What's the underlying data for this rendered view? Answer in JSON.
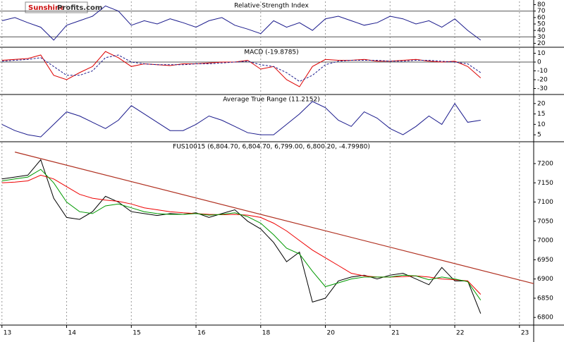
{
  "logo": {
    "part1": "Sunshine",
    "part2": "Profits.com"
  },
  "chart_data": [
    {
      "type": "line",
      "title": "Relative Strength Index",
      "x": [
        0,
        0.2,
        0.4,
        0.6,
        0.8,
        1,
        1.2,
        1.4,
        1.6,
        1.8,
        2,
        2.2,
        2.4,
        2.6,
        2.8,
        3,
        3.2,
        3.4,
        3.6,
        3.8,
        4,
        4.2,
        4.4,
        4.6,
        4.8,
        5,
        5.2,
        5.4,
        5.6,
        5.8,
        6,
        6.2,
        6.4,
        6.6,
        6.8,
        7,
        7.2,
        7.4
      ],
      "series": [
        {
          "color": "#1a1a8c",
          "values": [
            55,
            60,
            52,
            45,
            25,
            48,
            55,
            62,
            78,
            70,
            48,
            55,
            50,
            58,
            52,
            45,
            55,
            60,
            48,
            42,
            35,
            55,
            45,
            52,
            40,
            58,
            62,
            55,
            48,
            52,
            62,
            58,
            50,
            55,
            45,
            58,
            40,
            25
          ]
        }
      ],
      "xlim": [
        -0.03,
        8.22
      ],
      "xticks": [
        0,
        1,
        2,
        3,
        4,
        5,
        6,
        7,
        8
      ],
      "ylim": [
        15,
        85
      ],
      "yticks": [
        20,
        30,
        40,
        50,
        60,
        70,
        80
      ],
      "hlines": [
        70,
        30
      ]
    },
    {
      "type": "line",
      "title": "MACD (-19.8785)",
      "x": [
        0,
        0.2,
        0.4,
        0.6,
        0.8,
        1,
        1.2,
        1.4,
        1.6,
        1.8,
        2,
        2.2,
        2.4,
        2.6,
        2.8,
        3,
        3.2,
        3.4,
        3.6,
        3.8,
        4,
        4.2,
        4.4,
        4.6,
        4.8,
        5,
        5.2,
        5.4,
        5.6,
        5.8,
        6,
        6.2,
        6.4,
        6.6,
        6.8,
        7,
        7.2,
        7.4
      ],
      "series": [
        {
          "color": "#dd0000",
          "values": [
            2,
            3,
            4,
            8,
            -15,
            -20,
            -12,
            -5,
            12,
            5,
            -5,
            -2,
            -3,
            -4,
            -2,
            -2,
            -1,
            0,
            0,
            2,
            -8,
            -5,
            -20,
            -28,
            -5,
            3,
            2,
            2,
            3,
            1,
            1,
            2,
            3,
            1,
            0,
            1,
            -5,
            -18
          ]
        },
        {
          "color": "#1a1a8c",
          "dash": true,
          "values": [
            1,
            2,
            3,
            5,
            -5,
            -15,
            -15,
            -10,
            5,
            8,
            0,
            -2,
            -3,
            -3,
            -3,
            -2,
            -2,
            -1,
            0,
            1,
            -3,
            -5,
            -12,
            -22,
            -15,
            -3,
            1,
            2,
            2,
            2,
            1,
            1,
            2,
            2,
            1,
            0,
            -2,
            -12
          ]
        }
      ],
      "xlim": [
        -0.03,
        8.22
      ],
      "xticks": [
        0,
        1,
        2,
        3,
        4,
        5,
        6,
        7,
        8
      ],
      "ylim": [
        -36,
        16
      ],
      "yticks": [
        -30,
        -20,
        -10,
        0,
        10
      ],
      "hlines": [
        0
      ]
    },
    {
      "type": "line",
      "title": "Average True Range (11.2152)",
      "x": [
        0,
        0.2,
        0.4,
        0.6,
        0.8,
        1,
        1.2,
        1.4,
        1.6,
        1.8,
        2,
        2.2,
        2.4,
        2.6,
        2.8,
        3,
        3.2,
        3.4,
        3.6,
        3.8,
        4,
        4.2,
        4.4,
        4.6,
        4.8,
        5,
        5.2,
        5.4,
        5.6,
        5.8,
        6,
        6.2,
        6.4,
        6.6,
        6.8,
        7,
        7.2,
        7.4
      ],
      "series": [
        {
          "color": "#1a1a8c",
          "values": [
            10,
            7,
            5,
            4,
            10,
            16,
            14,
            11,
            8,
            12,
            19,
            15,
            11,
            7,
            7,
            10,
            14,
            12,
            9,
            6,
            5,
            5,
            10,
            15,
            21,
            18,
            12,
            9,
            16,
            13,
            8,
            5,
            9,
            14,
            10,
            20,
            11,
            12
          ]
        }
      ],
      "xlim": [
        -0.03,
        8.22
      ],
      "xticks": [
        0,
        1,
        2,
        3,
        4,
        5,
        6,
        7,
        8
      ],
      "ylim": [
        2,
        24
      ],
      "yticks": [
        5,
        10,
        15,
        20
      ]
    },
    {
      "type": "line",
      "title": "FUS10015 (6,804.70, 6,804.70, 6,799.00, 6,800.20, -4.79980)",
      "x": [
        0,
        0.2,
        0.4,
        0.6,
        0.8,
        1,
        1.2,
        1.4,
        1.6,
        1.8,
        2,
        2.2,
        2.4,
        2.6,
        2.8,
        3,
        3.2,
        3.4,
        3.6,
        3.8,
        4,
        4.2,
        4.4,
        4.6,
        4.8,
        5,
        5.2,
        5.4,
        5.6,
        5.8,
        6,
        6.2,
        6.4,
        6.6,
        6.8,
        7,
        7.2,
        7.4
      ],
      "series": [
        {
          "color": "#000000",
          "values": [
            7160,
            7165,
            7170,
            7210,
            7110,
            7060,
            7055,
            7075,
            7115,
            7100,
            7075,
            7070,
            7065,
            7070,
            7068,
            7072,
            7060,
            7070,
            7080,
            7050,
            7030,
            6995,
            6945,
            6970,
            6840,
            6850,
            6895,
            6905,
            6910,
            6900,
            6910,
            6915,
            6900,
            6885,
            6930,
            6895,
            6895,
            6810
          ]
        },
        {
          "color": "#ee0000",
          "values": [
            7150,
            7152,
            7155,
            7170,
            7160,
            7140,
            7120,
            7110,
            7105,
            7102,
            7095,
            7085,
            7080,
            7075,
            7072,
            7070,
            7068,
            7067,
            7068,
            7066,
            7060,
            7045,
            7025,
            7000,
            6975,
            6955,
            6935,
            6915,
            6908,
            6905,
            6905,
            6906,
            6908,
            6905,
            6900,
            6898,
            6895,
            6860
          ]
        },
        {
          "color": "#009900",
          "values": [
            7155,
            7160,
            7165,
            7185,
            7150,
            7100,
            7075,
            7070,
            7090,
            7095,
            7085,
            7075,
            7070,
            7068,
            7068,
            7070,
            7066,
            7068,
            7072,
            7062,
            7045,
            7015,
            6980,
            6965,
            6920,
            6880,
            6890,
            6900,
            6905,
            6905,
            6905,
            6910,
            6908,
            6898,
            6905,
            6900,
            6893,
            6845
          ]
        }
      ],
      "trendline": {
        "color": "#b03020",
        "x": [
          0.2,
          8.22
        ],
        "values": [
          7230,
          6888
        ]
      },
      "xlim": [
        -0.03,
        8.22
      ],
      "xticks": [
        {
          "value": 0,
          "label": "13"
        },
        {
          "value": 1,
          "label": "14"
        },
        {
          "value": 2,
          "label": "15"
        },
        {
          "value": 3,
          "label": "16"
        },
        {
          "value": 4,
          "label": "18"
        },
        {
          "value": 5,
          "label": "20"
        },
        {
          "value": 6,
          "label": "21"
        },
        {
          "value": 7,
          "label": "22"
        },
        {
          "value": 8,
          "label": "23"
        }
      ],
      "ylim": [
        6782,
        7255
      ],
      "yticks": [
        6800,
        6850,
        6900,
        6950,
        7000,
        7050,
        7100,
        7150,
        7200
      ]
    }
  ]
}
